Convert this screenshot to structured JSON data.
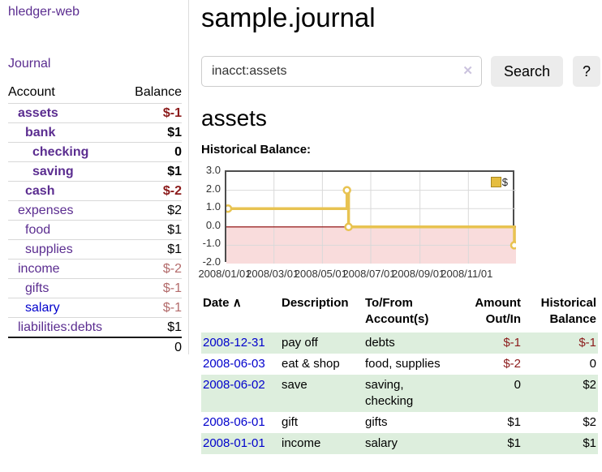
{
  "app": {
    "title": "hledger-web",
    "nav_journal": "Journal"
  },
  "colors": {
    "purple_link": "#5b2d90",
    "blue_link": "#0000cc",
    "negative_strong": "#8b1a1a",
    "negative_muted": "#b36b6b",
    "row_shaded": "#ddeedd",
    "button_bg": "#ececec",
    "border_light": "#dddddd",
    "text_primary": "#000000",
    "legend_fill": "#e5bd3f"
  },
  "sidebar": {
    "header": {
      "account": "Account",
      "balance": "Balance"
    },
    "accounts": [
      {
        "name": "assets",
        "balance": "$-1",
        "indent": 1,
        "bold": true,
        "amount_style": "neg",
        "link": "purple"
      },
      {
        "name": "bank",
        "balance": "$1",
        "indent": 2,
        "bold": true,
        "amount_style": "pos",
        "link": "purple"
      },
      {
        "name": "checking",
        "balance": "0",
        "indent": 3,
        "bold": true,
        "amount_style": "pos",
        "link": "purple"
      },
      {
        "name": "saving",
        "balance": "$1",
        "indent": 3,
        "bold": true,
        "amount_style": "pos",
        "link": "purple"
      },
      {
        "name": "cash",
        "balance": "$-2",
        "indent": 2,
        "bold": true,
        "amount_style": "neg",
        "link": "purple"
      },
      {
        "name": "expenses",
        "balance": "$2",
        "indent": 1,
        "bold": false,
        "amount_style": "pos",
        "link": "purple"
      },
      {
        "name": "food",
        "balance": "$1",
        "indent": 2,
        "bold": false,
        "amount_style": "pos",
        "link": "purple"
      },
      {
        "name": "supplies",
        "balance": "$1",
        "indent": 2,
        "bold": false,
        "amount_style": "pos",
        "link": "purple"
      },
      {
        "name": "income",
        "balance": "$-2",
        "indent": 1,
        "bold": false,
        "amount_style": "neg-muted",
        "link": "purple"
      },
      {
        "name": "gifts",
        "balance": "$-1",
        "indent": 2,
        "bold": false,
        "amount_style": "neg-muted",
        "link": "purple"
      },
      {
        "name": "salary",
        "balance": "$-1",
        "indent": 2,
        "bold": false,
        "amount_style": "neg-muted",
        "link": "blue"
      },
      {
        "name": "liabilities:debts",
        "balance": "$1",
        "indent": 1,
        "bold": false,
        "amount_style": "pos",
        "link": "purple"
      }
    ],
    "total": "0"
  },
  "header": {
    "title": "sample.journal"
  },
  "search": {
    "value": "inacct:assets",
    "clear_label": "✕",
    "button": "Search",
    "help_button": "?"
  },
  "account_page": {
    "heading": "assets",
    "chart_label": "Historical Balance:"
  },
  "chart_data": {
    "type": "line",
    "step": true,
    "title": "Historical Balance",
    "series": [
      {
        "name": "$",
        "points": [
          {
            "x": "2008-01-01",
            "y": 1
          },
          {
            "x": "2008-06-01",
            "y": 2
          },
          {
            "x": "2008-06-03",
            "y": 0
          },
          {
            "x": "2008-12-31",
            "y": -1
          }
        ]
      }
    ],
    "ylim": [
      -2,
      3
    ],
    "yticks": [
      3.0,
      2.0,
      1.0,
      0.0,
      -1.0,
      -2.0
    ],
    "xlim": [
      "2008-01-01",
      "2008-12-31"
    ],
    "xticks": [
      "2008/01/01",
      "2008/03/01",
      "2008/05/01",
      "2008/07/01",
      "2008/09/01",
      "2008/11/01"
    ],
    "grid": true,
    "negative_region_shaded": true,
    "legend": {
      "label": "$",
      "position": "top-right"
    },
    "colors": {
      "line": "#e8c351",
      "marker_fill": "#ffffff",
      "negative_fill": "#f9dcdc",
      "zero_line": "#8b0000",
      "grid": "#d9d9d9"
    }
  },
  "register": {
    "columns": {
      "date": "Date",
      "sort_icon": "∧",
      "description": "Description",
      "accounts": "To/From Account(s)",
      "amount": "Amount Out/In",
      "balance": "Historical Balance"
    },
    "rows": [
      {
        "date": "2008-12-31",
        "description": "pay off",
        "accounts": "debts",
        "amount": "$-1",
        "amount_neg": true,
        "balance": "$-1",
        "balance_neg": true,
        "shaded": true
      },
      {
        "date": "2008-06-03",
        "description": "eat & shop",
        "accounts": "food, supplies",
        "amount": "$-2",
        "amount_neg": true,
        "balance": "0",
        "balance_neg": false,
        "shaded": false
      },
      {
        "date": "2008-06-02",
        "description": "save",
        "accounts": "saving,\nchecking",
        "amount": "0",
        "amount_neg": false,
        "balance": "$2",
        "balance_neg": false,
        "shaded": true
      },
      {
        "date": "2008-06-01",
        "description": "gift",
        "accounts": "gifts",
        "amount": "$1",
        "amount_neg": false,
        "balance": "$2",
        "balance_neg": false,
        "shaded": false
      },
      {
        "date": "2008-01-01",
        "description": "income",
        "accounts": "salary",
        "amount": "$1",
        "amount_neg": false,
        "balance": "$1",
        "balance_neg": false,
        "shaded": true
      }
    ]
  }
}
